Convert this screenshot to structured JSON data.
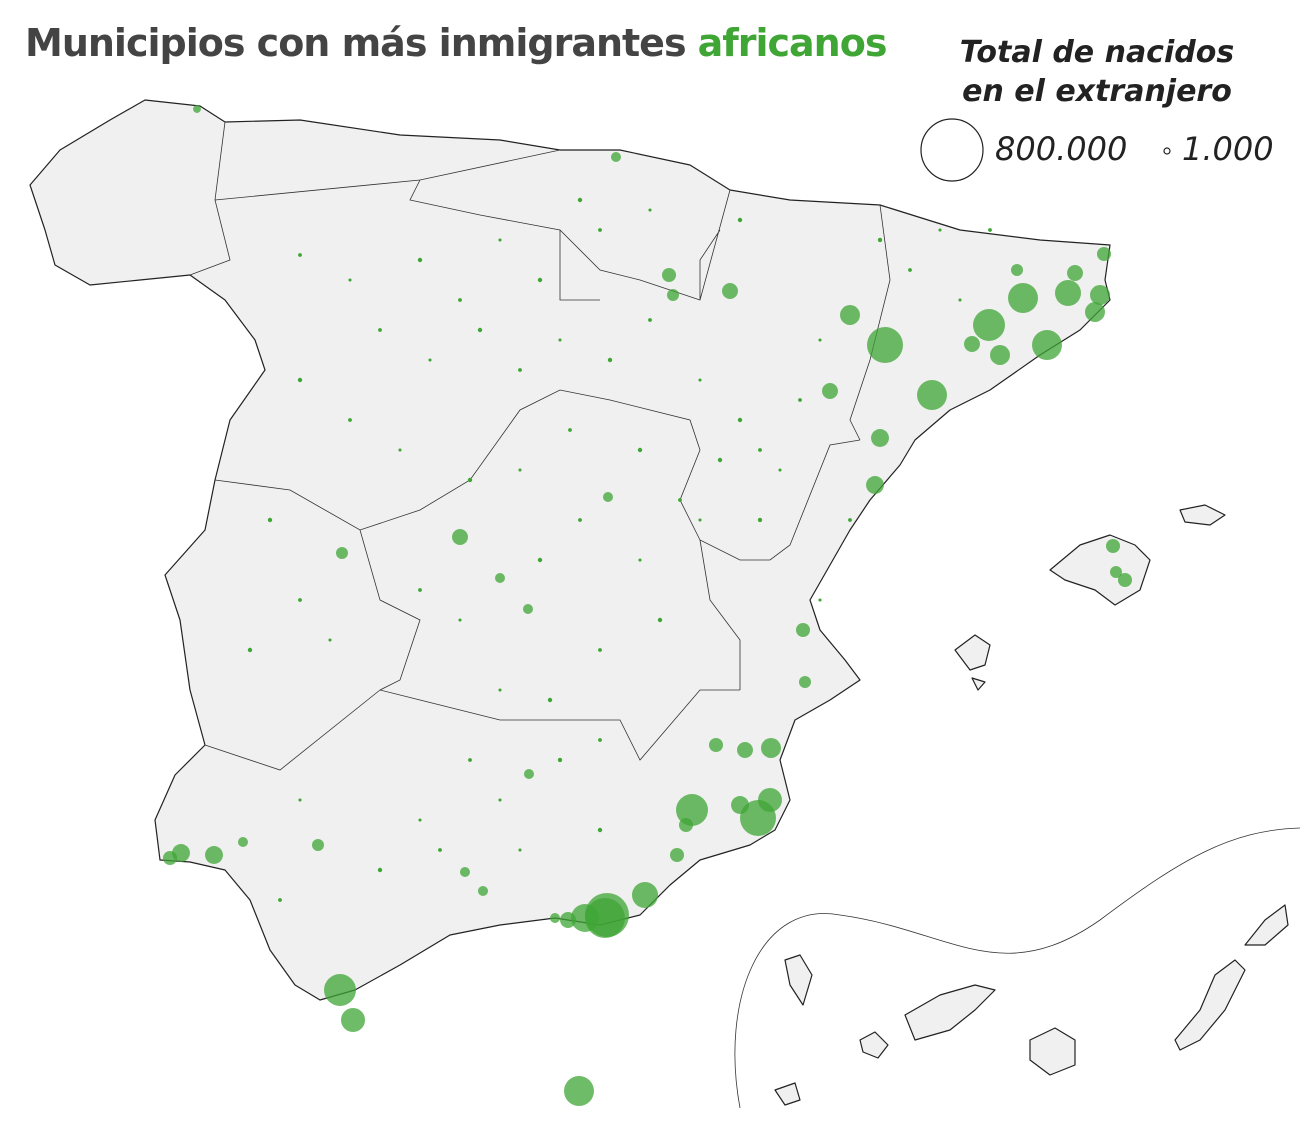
{
  "title": {
    "text": "Municipios con más inmigrantes",
    "highlight": "africanos"
  },
  "legend": {
    "title_lines": [
      "Total de nacidos",
      "en el extranjero"
    ],
    "items": [
      {
        "value": 800000,
        "label": "800.000"
      },
      {
        "value": 1000,
        "label": "1.000"
      }
    ]
  },
  "bubbles": {
    "color": "#3fa535",
    "values": [
      403000,
      333000,
      141000,
      163000,
      270000,
      213000,
      187000,
      270000,
      213000,
      187000,
      187000,
      213000,
      120000,
      187000,
      141000,
      83000,
      83000,
      83000,
      67000,
      67000,
      53000,
      53000,
      83000,
      53000,
      41000,
      120000,
      67000,
      41000,
      41000,
      53000,
      30000,
      41000,
      41000,
      30000,
      41000,
      30000,
      30000,
      67000,
      41000,
      67000,
      21000,
      21000,
      53000,
      83000,
      53000,
      41000,
      53000,
      30000,
      41000,
      30000,
      21000,
      21000,
      21000,
      21000,
      13000,
      21000,
      21000,
      21000
    ],
    "small_values": [
      3000,
      2000,
      4000,
      3000,
      2000,
      4000,
      3000,
      2000,
      4000,
      3000,
      2000,
      4000,
      3000,
      2000,
      4000,
      3000,
      2000,
      4000,
      3000,
      2000,
      4000,
      3000,
      2000,
      4000,
      3000,
      2000,
      4000,
      3000,
      2000,
      4000,
      3000,
      2000,
      4000,
      3000,
      2000,
      4000,
      3000,
      2000,
      4000,
      3000,
      2000,
      4000,
      3000,
      2000,
      4000,
      3000,
      2000,
      4000,
      3000,
      2000,
      4000,
      3000,
      2000,
      4000,
      3000,
      2000,
      4000,
      3000,
      2000,
      4000,
      3000,
      2000,
      4000,
      3000,
      2000
    ]
  }
}
